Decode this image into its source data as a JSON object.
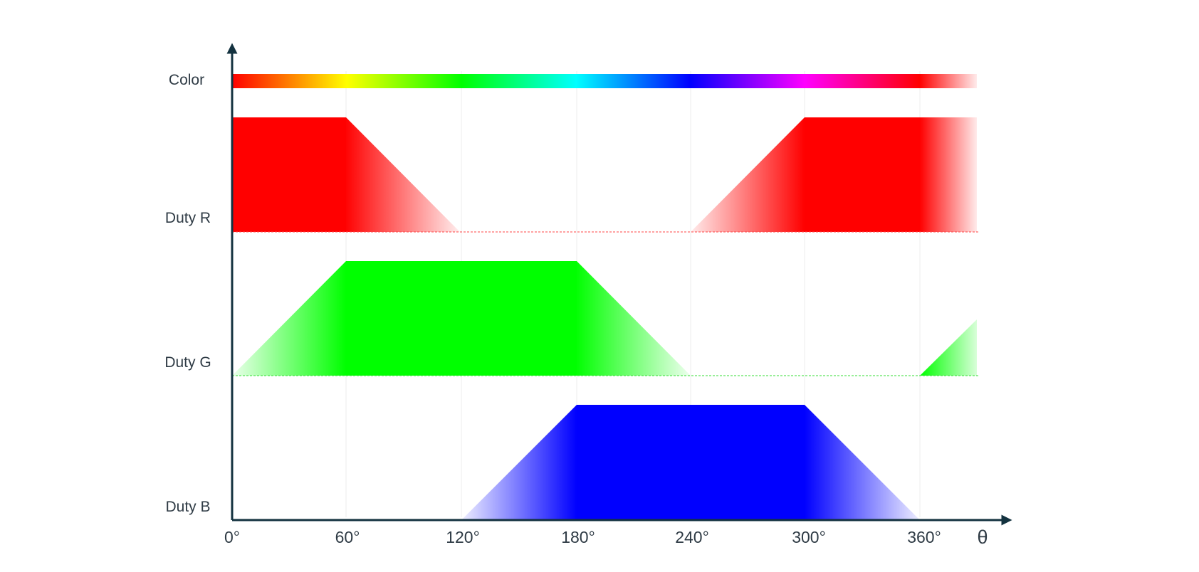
{
  "rows": {
    "color_label": "Color",
    "r_label": "Duty R",
    "g_label": "Duty G",
    "b_label": "Duty B"
  },
  "axis": {
    "x_symbol": "θ",
    "ticks": [
      "0°",
      "60°",
      "120°",
      "180°",
      "240°",
      "300°",
      "360°"
    ]
  },
  "colors": {
    "axis": "#13323f",
    "red": "#ff0000",
    "green": "#00ff00",
    "blue": "#0000ff",
    "grid": "#eeeeee"
  },
  "chart_data": {
    "type": "area",
    "x": [
      0,
      60,
      120,
      180,
      240,
      300,
      360,
      390
    ],
    "xlabel": "θ",
    "series": [
      {
        "name": "Duty R",
        "values": [
          1,
          1,
          0,
          0,
          0,
          1,
          1,
          1
        ]
      },
      {
        "name": "Duty G",
        "values": [
          0,
          1,
          1,
          1,
          0,
          0,
          0,
          0.5
        ]
      },
      {
        "name": "Duty B",
        "values": [
          0,
          0,
          0,
          1,
          1,
          1,
          0,
          0
        ]
      }
    ],
    "hue_bar": [
      "#ff0000",
      "#ffff00",
      "#00ff00",
      "#00ffff",
      "#0000ff",
      "#ff00ff",
      "#ff0000"
    ]
  }
}
